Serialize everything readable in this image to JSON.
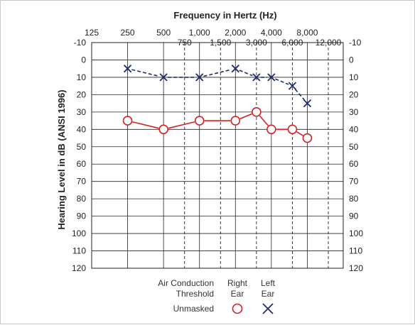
{
  "chart_data": {
    "type": "scatter",
    "title": "Frequency in Hertz (Hz)",
    "ylabel": "Hearing Level in dB (ANSI 1996)",
    "x_ticks_top": [
      "125",
      "250",
      "500",
      "1,000",
      "2,000",
      "4,000",
      "8,000"
    ],
    "x_ticks_mid": [
      "750",
      "1,500",
      "3,000",
      "6,000",
      "12,000"
    ],
    "y_ticks": [
      "-10",
      "0",
      "10",
      "20",
      "30",
      "40",
      "50",
      "60",
      "70",
      "80",
      "90",
      "100",
      "110",
      "120"
    ],
    "ylim": [
      -10,
      120
    ],
    "y_inverted": true,
    "grid": true,
    "series": [
      {
        "name": "Right Ear",
        "marker": "circle",
        "color": "#d32027",
        "x": [
          250,
          500,
          1000,
          2000,
          3000,
          4000,
          6000,
          8000
        ],
        "values": [
          35,
          40,
          35,
          35,
          30,
          40,
          40,
          45
        ]
      },
      {
        "name": "Left Ear",
        "marker": "x",
        "color": "#1f2d6b",
        "x": [
          250,
          500,
          1000,
          2000,
          3000,
          4000,
          6000,
          8000
        ],
        "values": [
          5,
          10,
          10,
          5,
          10,
          10,
          15,
          25
        ]
      }
    ]
  },
  "legend": {
    "air_conduction_line1": "Air Conduction",
    "air_conduction_line2": "Threshold",
    "right_line1": "Right",
    "right_line2": "Ear",
    "left_line1": "Left",
    "left_line2": "Ear",
    "unmasked": "Unmasked"
  }
}
